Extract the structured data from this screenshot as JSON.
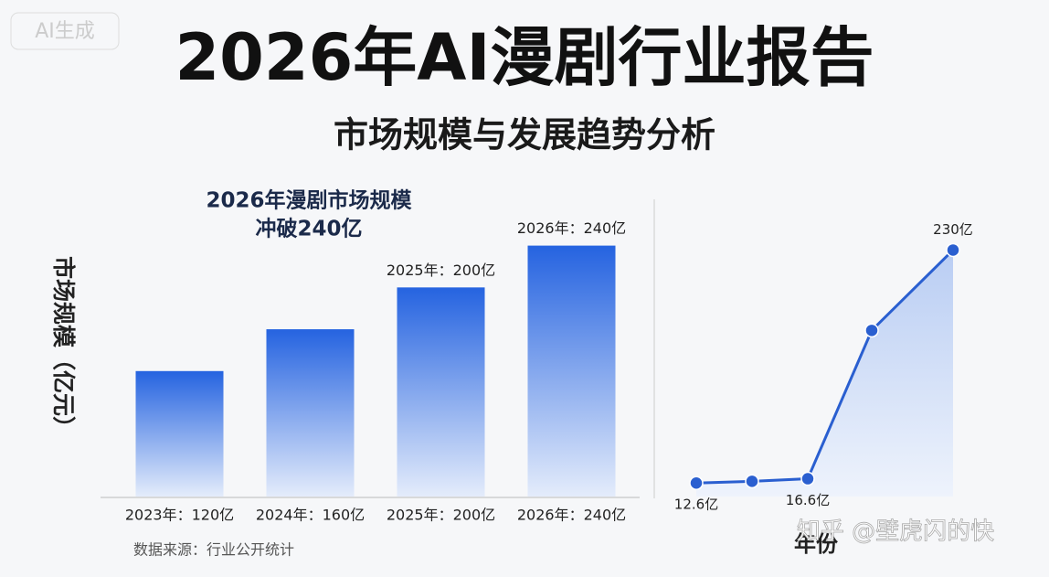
{
  "watermark": "AI生成",
  "credit": "知乎 @壁虎闪的快",
  "chart_data": [
    {
      "type": "bar",
      "title": "2026年AI漫剧行业报告",
      "subtitle": "市场规模与发展趋势分析",
      "annotation": [
        "2026年漫剧市场规模",
        "冲破240亿"
      ],
      "y_label": "市场规模（亿元）",
      "source": "数据来源：行业公开统计",
      "categories": [
        "2023年：120亿",
        "2024年：160亿",
        "2025年：200亿",
        "2026年：240亿"
      ],
      "values": [
        120,
        160,
        200,
        240
      ],
      "value_labels": [
        null,
        null,
        "2025年：200亿",
        "2026年：240亿"
      ],
      "color": "#2563e0",
      "ylim": [
        0,
        300
      ]
    },
    {
      "type": "line",
      "x_label": "年份",
      "values": [
        12.6,
        14.2,
        16.6,
        155,
        230
      ],
      "value_labels": [
        "12.6亿",
        null,
        "16.6亿",
        null,
        "230亿"
      ],
      "color": "#2a5fd0",
      "ylim": [
        0,
        250
      ]
    }
  ]
}
